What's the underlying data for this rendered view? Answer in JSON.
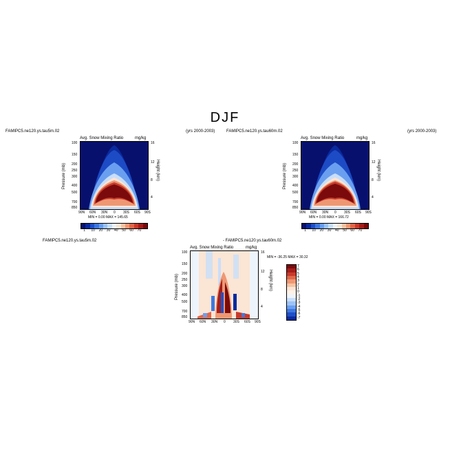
{
  "page": {
    "title": "DJF"
  },
  "colors": {
    "panel_scale": [
      "#08106e",
      "#0b2a9e",
      "#1f4fc9",
      "#3f78e0",
      "#6a9ff0",
      "#9cc3f6",
      "#c8defa",
      "#eef4fb",
      "#fbe5d5",
      "#f6c3a3",
      "#ee9873",
      "#e0674a",
      "#c93a2b",
      "#a51e1a",
      "#7a0a0c"
    ],
    "diff_scale": [
      "#7a0a0c",
      "#a51e1a",
      "#c93a2b",
      "#e0674a",
      "#ee9873",
      "#f6c3a3",
      "#fbe5d5",
      "#fdf1e8",
      "#eef4fb",
      "#c8defa",
      "#9cc3f6",
      "#6a9ff0",
      "#3f78e0",
      "#1f4fc9",
      "#0b2a9e"
    ]
  },
  "panels": [
    {
      "case": "FAMIPC5.ne120.ys.tau5m.02",
      "years": "(yrs 2000-2003)",
      "variable": "Avg. Snow Mixing Ratio",
      "units": "mg/kg",
      "stats": "MIN =   0.00   MAX = 145.65"
    },
    {
      "case": "FAMIPC5.ne120.ys.tau60m.02",
      "years": "(yrs 2000-2003)",
      "variable": "Avg. Snow Mixing Ratio",
      "units": "mg/kg",
      "stats": "MIN =   0.00   MAX = 166.72"
    }
  ],
  "diff": {
    "case_left": "FAMIPC5.ne120.ys.tau5m.02",
    "case_right": "- FAMIPC5.ne120.ys.tau60m.02",
    "variable": "Avg. Snow Mixing Ratio",
    "units": "mg/kg",
    "stats": "MIN = -36.25   MAX =  30.32"
  },
  "axes": {
    "ylabel": "Pressure (mb)",
    "y2label": "Height (km)",
    "pressure_ticks": [
      "100",
      "150",
      "200",
      "250",
      "300",
      "400",
      "500",
      "700",
      "850"
    ],
    "height_ticks": [
      "16",
      "12",
      "8",
      "4"
    ],
    "lat_ticks": [
      "90N",
      "60N",
      "30N",
      "0",
      "30S",
      "60S",
      "90S"
    ]
  },
  "colorbar_panel_labels": [
    "1",
    "10",
    "20",
    "30",
    "40",
    "50",
    "60",
    "70"
  ],
  "colorbar_diff_labels": [
    "7",
    "6",
    "5",
    "4",
    "3",
    "2",
    "1",
    "0",
    "-1",
    "-2",
    "-3",
    "-4",
    "-5",
    "-6",
    "-7"
  ],
  "chart_data": [
    {
      "type": "heatmap",
      "title": "Avg. Snow Mixing Ratio",
      "units": "mg/kg",
      "x_axis": [
        "90N",
        "60N",
        "30N",
        "0",
        "30S",
        "60S",
        "90S"
      ],
      "y_axis_pressure_mb": [
        100,
        150,
        200,
        250,
        300,
        400,
        500,
        700,
        850
      ],
      "min": 0.0,
      "max": 145.65,
      "colorbar_levels": [
        1,
        10,
        20,
        30,
        40,
        50,
        60,
        70
      ]
    },
    {
      "type": "heatmap",
      "title": "Avg. Snow Mixing Ratio",
      "units": "mg/kg",
      "x_axis": [
        "90N",
        "60N",
        "30N",
        "0",
        "30S",
        "60S",
        "90S"
      ],
      "y_axis_pressure_mb": [
        100,
        150,
        200,
        250,
        300,
        400,
        500,
        700,
        850
      ],
      "min": 0.0,
      "max": 166.72,
      "colorbar_levels": [
        1,
        10,
        20,
        30,
        40,
        50,
        60,
        70
      ]
    },
    {
      "type": "heatmap",
      "title": "Avg. Snow Mixing Ratio (difference)",
      "units": "mg/kg",
      "x_axis": [
        "90N",
        "60N",
        "30N",
        "0",
        "30S",
        "60S",
        "90S"
      ],
      "y_axis_pressure_mb": [
        100,
        150,
        200,
        250,
        300,
        400,
        500,
        700,
        850
      ],
      "min": -36.25,
      "max": 30.32,
      "colorbar_levels": [
        7,
        6,
        5,
        4,
        3,
        2,
        1,
        0,
        -1,
        -2,
        -3,
        -4,
        -5,
        -6,
        -7
      ]
    }
  ]
}
